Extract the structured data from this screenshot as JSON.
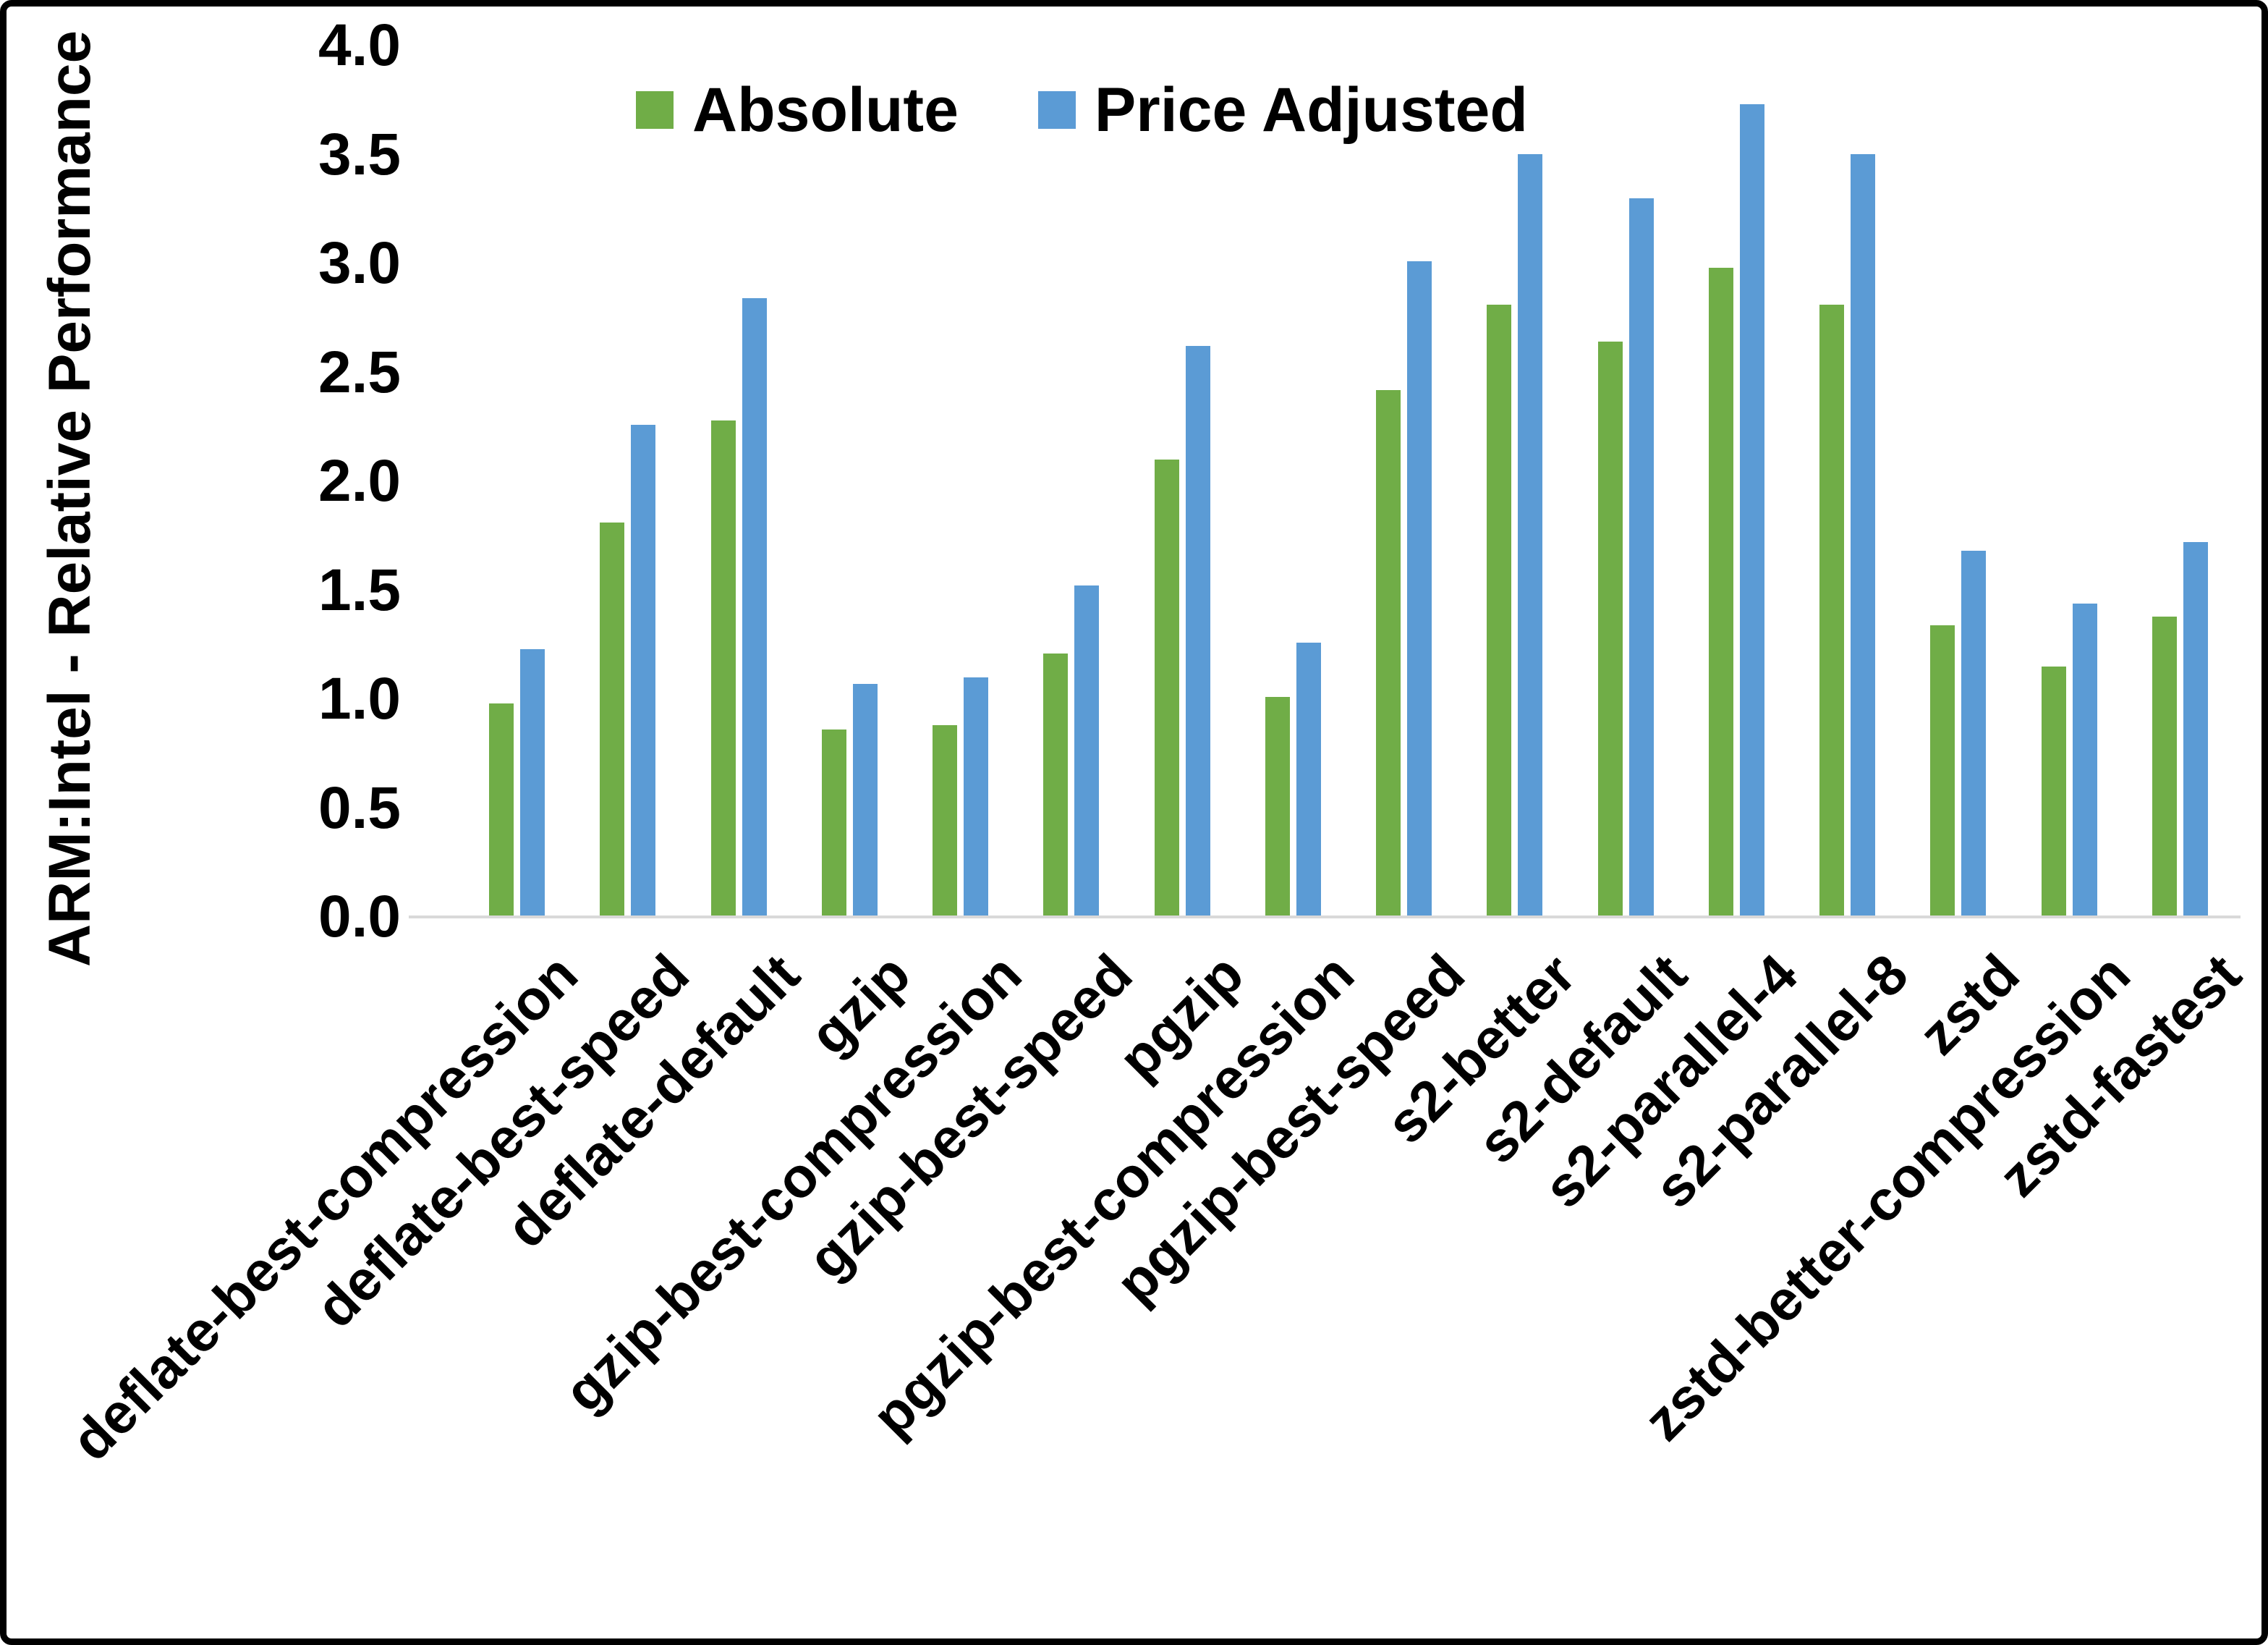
{
  "figure": {
    "background": "#FFFFFF",
    "border_color": "#000000",
    "axis_line_color": "#D9D9D9",
    "text_color": "#000000"
  },
  "chart_data": {
    "type": "bar",
    "title": "",
    "xlabel": "",
    "ylabel": "ARM:Intel - Relative Performance",
    "ylim": [
      0.0,
      4.0
    ],
    "ytick_step": 0.5,
    "yticks": [
      "0.0",
      "0.5",
      "1.0",
      "1.5",
      "2.0",
      "2.5",
      "3.0",
      "3.5",
      "4.0"
    ],
    "grid": false,
    "legend_position": "top-center",
    "categories": [
      "deflate-best-compression",
      "deflate-best-speed",
      "deflate-default",
      "gzip",
      "gzip-best-compression",
      "gzip-best-speed",
      "pgzip",
      "pgzip-best-compression",
      "pgzip-best-speed",
      "s2-better",
      "s2-default",
      "s2-parallel-4",
      "s2-parallel-8",
      "zstd",
      "zstd-better-compression",
      "zstd-fastest"
    ],
    "series": [
      {
        "name": "Absolute",
        "color": "#70AD47",
        "values": [
          0.98,
          1.81,
          2.28,
          0.86,
          0.88,
          1.21,
          2.1,
          1.01,
          2.42,
          2.81,
          2.64,
          2.98,
          2.81,
          1.34,
          1.15,
          1.38
        ]
      },
      {
        "name": "Price Adjusted",
        "color": "#5B9BD5",
        "values": [
          1.23,
          2.26,
          2.84,
          1.07,
          1.1,
          1.52,
          2.62,
          1.26,
          3.01,
          3.5,
          3.3,
          3.73,
          3.5,
          1.68,
          1.44,
          1.72
        ]
      }
    ]
  }
}
